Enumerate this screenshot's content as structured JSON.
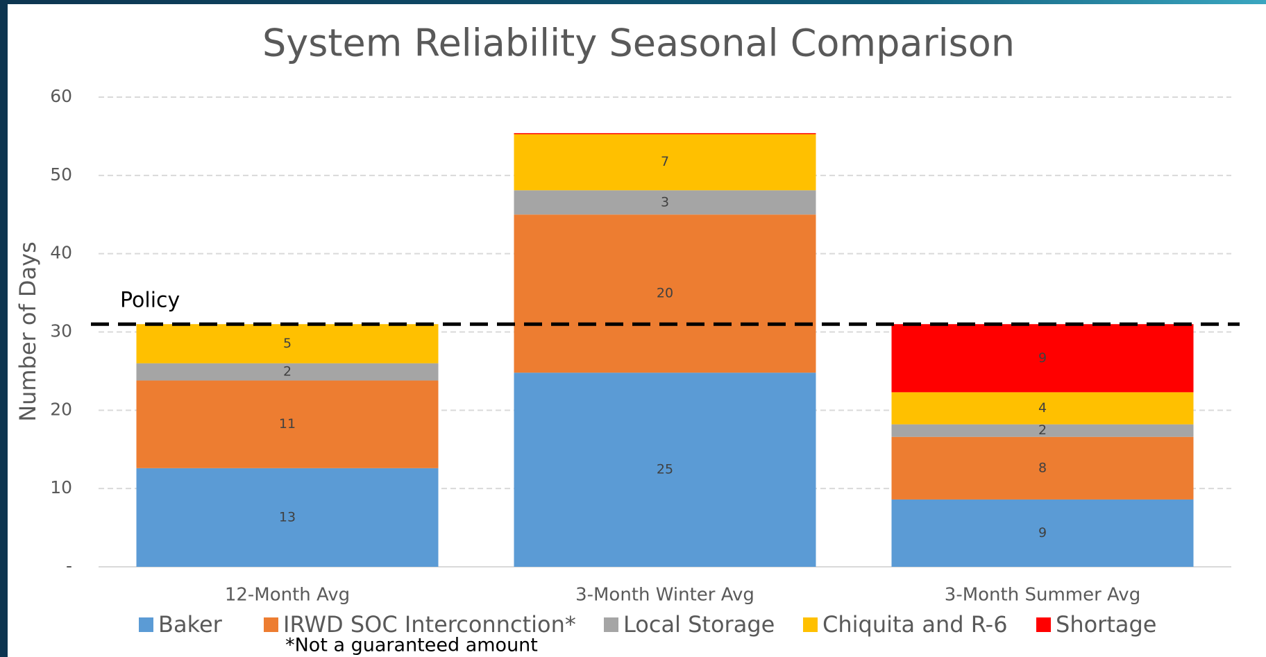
{
  "chart_data": {
    "type": "stacked_bar",
    "title": "System Reliability Seasonal Comparison",
    "y_label": "Number of Days",
    "categories": [
      "12-Month Avg",
      "3-Month Winter Avg",
      "3-Month Summer Avg"
    ],
    "series": [
      {
        "name": "Baker",
        "color": "#5b9bd5",
        "values": [
          12.6,
          24.8,
          8.6
        ],
        "value_labels": [
          "13",
          "25",
          "9"
        ]
      },
      {
        "name": "IRWD SOC Interconnction*",
        "color": "#ed7d31",
        "values": [
          11.2,
          20.2,
          8.0
        ],
        "value_labels": [
          "11",
          "20",
          "8"
        ]
      },
      {
        "name": "Local Storage",
        "color": "#a5a5a5",
        "values": [
          2.2,
          3.1,
          1.6
        ],
        "value_labels": [
          "2",
          "3",
          "2"
        ]
      },
      {
        "name": "Chiquita and R-6",
        "color": "#ffc000",
        "values": [
          5.0,
          7.2,
          4.1
        ],
        "value_labels": [
          "5",
          "7",
          "4"
        ]
      },
      {
        "name": "Shortage",
        "color": "#ff0000",
        "values": [
          0,
          0.1,
          8.7
        ],
        "value_labels": [
          null,
          null,
          "9"
        ]
      }
    ],
    "ylim": [
      0,
      60
    ],
    "yticks": [
      {
        "value": 0,
        "label": "-"
      },
      10,
      20,
      30,
      40,
      50,
      60
    ],
    "grid": true,
    "policy": {
      "label": "Policy",
      "value": 31
    },
    "footnote": "*Not a guaranteed amount"
  }
}
